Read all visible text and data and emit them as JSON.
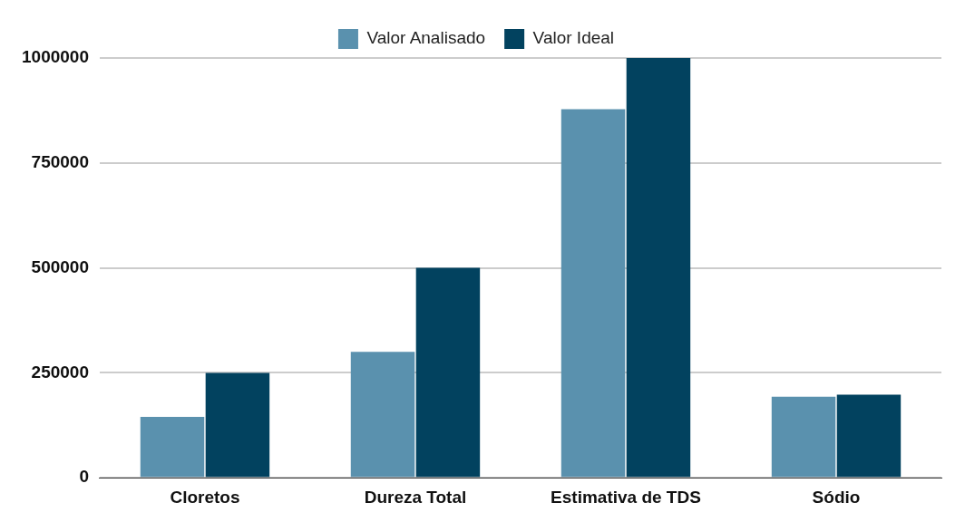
{
  "chart_data": {
    "type": "bar",
    "categories": [
      "Cloretos",
      "Dureza Total",
      "Estimativa de TDS",
      "Sódio"
    ],
    "series": [
      {
        "name": "Valor Analisado",
        "color": "#5a91ae",
        "values": [
          145000,
          300000,
          878000,
          193000
        ]
      },
      {
        "name": "Valor Ideal",
        "color": "#02425f",
        "values": [
          250000,
          500000,
          1000000,
          198000
        ]
      }
    ],
    "ylim": [
      0,
      1000000
    ],
    "yticks": [
      0,
      250000,
      500000,
      750000,
      1000000
    ],
    "grid": "y",
    "legend": "top"
  }
}
